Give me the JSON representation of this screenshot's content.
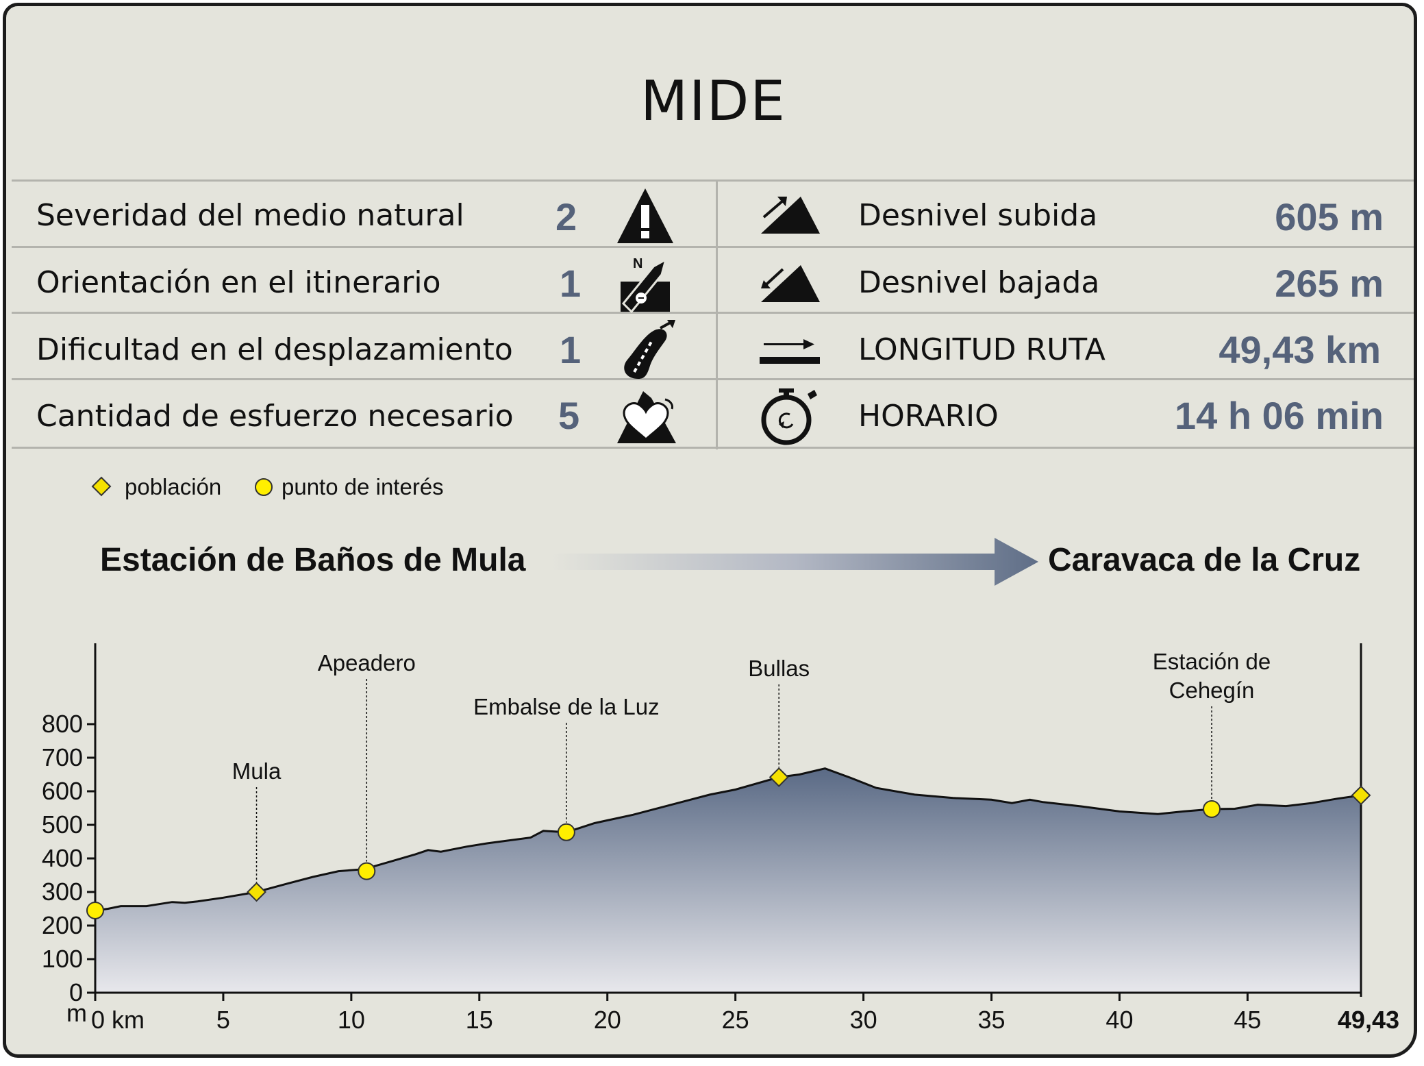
{
  "title": "MIDE",
  "mide_rows": [
    {
      "label": "Severidad del medio natural",
      "value": "2",
      "icon": "warning-triangle-icon"
    },
    {
      "label": "Orientación en el itinerario",
      "value": "1",
      "icon": "compass-orientation-icon"
    },
    {
      "label": "Dificultad en el desplazamiento",
      "value": "1",
      "icon": "footprint-icon"
    },
    {
      "label": "Cantidad de esfuerzo necesario",
      "value": "5",
      "icon": "heart-mountain-icon"
    }
  ],
  "route_stats": [
    {
      "label": "Desnivel subida",
      "value": "605 m",
      "icon": "ascent-slope-icon"
    },
    {
      "label": "Desnivel bajada",
      "value": "265 m",
      "icon": "descent-slope-icon"
    },
    {
      "label": "LONGITUD RUTA",
      "value": "49,43 km",
      "icon": "distance-arrow-icon"
    },
    {
      "label": "HORARIO",
      "value": "14 h 06 min",
      "icon": "stopwatch-icon"
    }
  ],
  "legend": {
    "poblacion": "población",
    "punto_interes": "punto de interés",
    "poblacion_color": "#f5e100",
    "punto_color": "#ffef00"
  },
  "route": {
    "start": "Estación de Baños de Mula",
    "end": "Caravaca de la Cruz",
    "arrow_color": "#5f6e87"
  },
  "colors": {
    "value_text": "#55627a",
    "profile_top": "#5a6a85",
    "profile_bottom": "#e8e8ec",
    "background": "#e4e4dc"
  },
  "chart_data": {
    "type": "area",
    "xlabel_unit": "km",
    "ylabel_unit": "m",
    "xlim": [
      0,
      49.43
    ],
    "ylim": [
      0,
      800
    ],
    "x_ticks": [
      0,
      5,
      10,
      15,
      20,
      25,
      30,
      35,
      40,
      45
    ],
    "x_tick_labels": [
      "0 km",
      "5",
      "10",
      "15",
      "20",
      "25",
      "30",
      "35",
      "40",
      "45"
    ],
    "x_end_label": "49,43",
    "y_ticks": [
      0,
      100,
      200,
      300,
      400,
      500,
      600,
      700,
      800
    ],
    "y_tick_labels": [
      "0",
      "100",
      "200",
      "300",
      "400",
      "500",
      "600",
      "700",
      "800"
    ],
    "y_unit_label": "m",
    "x": [
      0,
      0.5,
      1,
      2,
      3,
      3.5,
      4,
      5,
      6.3,
      7.5,
      8.5,
      9.5,
      10.5,
      11.5,
      12.5,
      13,
      13.5,
      14.5,
      15.3,
      16,
      17,
      17.5,
      18.4,
      19.5,
      21,
      23,
      24,
      25,
      26.7,
      27.5,
      28.5,
      29.5,
      30.5,
      32,
      33.5,
      35,
      35.8,
      36.5,
      37,
      38.5,
      40,
      41.5,
      42.5,
      43.6,
      44.5,
      45.4,
      46.5,
      47.5,
      48.5,
      49.43
    ],
    "y": [
      245,
      250,
      258,
      258,
      270,
      268,
      272,
      283,
      300,
      325,
      345,
      362,
      368,
      390,
      412,
      425,
      420,
      435,
      445,
      452,
      462,
      482,
      478,
      505,
      530,
      570,
      590,
      605,
      642,
      650,
      668,
      640,
      610,
      590,
      580,
      575,
      565,
      575,
      568,
      555,
      540,
      532,
      540,
      547,
      548,
      560,
      556,
      565,
      578,
      588
    ],
    "series": [
      {
        "name": "Mula",
        "type": "población",
        "x": 6.3,
        "y": 300
      },
      {
        "name": "Apeadero",
        "type": "punto de interés",
        "x": 10.6,
        "y": 362
      },
      {
        "name": "Embalse de la Luz",
        "type": "punto de interés",
        "x": 18.4,
        "y": 478
      },
      {
        "name": "Bullas",
        "type": "población",
        "x": 26.7,
        "y": 642
      },
      {
        "name": "Estación de Cehegín",
        "name_lines": [
          "Estación de",
          "Cehegín"
        ],
        "type": "punto de interés",
        "x": 43.6,
        "y": 547
      },
      {
        "name": "",
        "type": "punto de interés",
        "x": 0,
        "y": 245
      },
      {
        "name": "",
        "type": "población",
        "x": 49.43,
        "y": 588
      }
    ]
  }
}
